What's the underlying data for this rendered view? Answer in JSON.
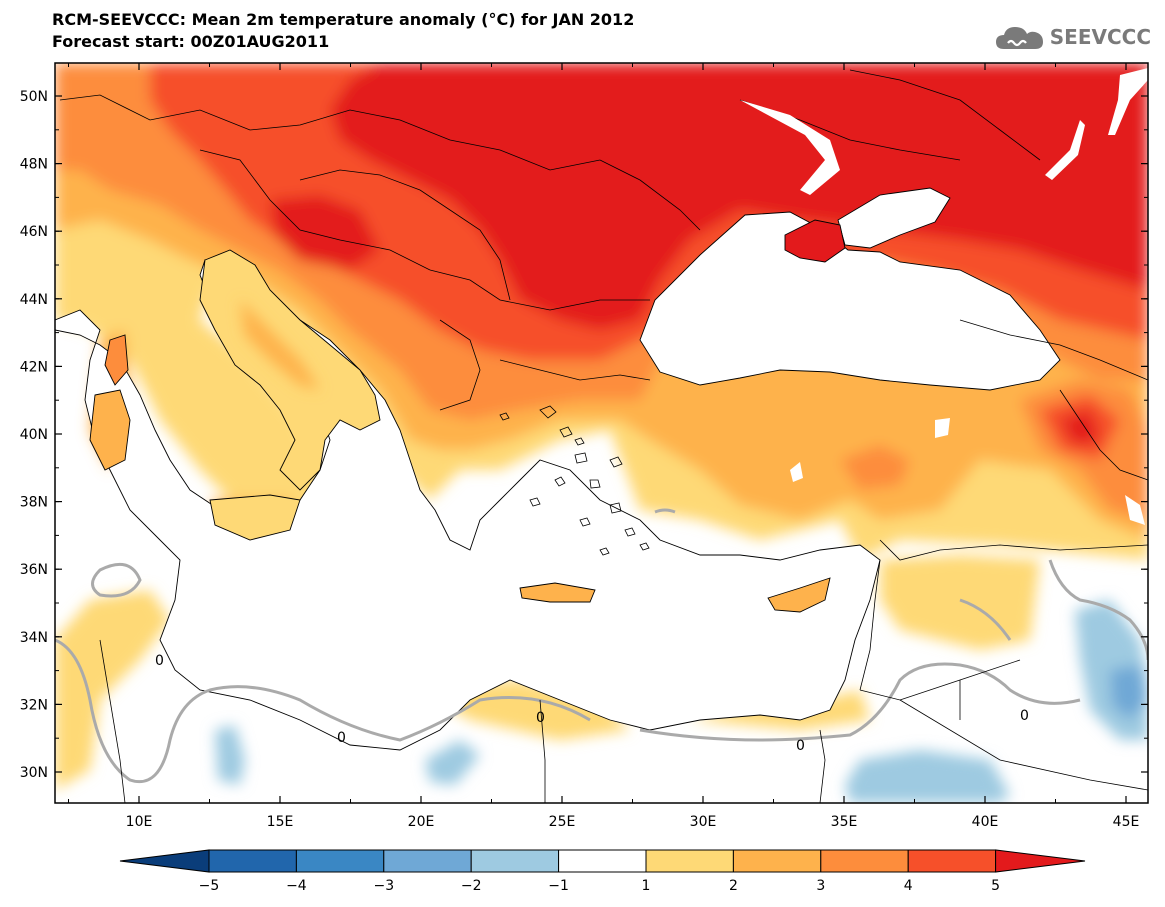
{
  "header": {
    "title_line1": "RCM-SEEVCCC: Mean 2m temperature anomaly (°C) for JAN 2012",
    "title_line2": "Forecast start: 00Z01AUG2011"
  },
  "logo": {
    "text": "SEEVCCC",
    "icon": "cloud-logo-icon"
  },
  "map": {
    "lat_labels": [
      "50N",
      "48N",
      "46N",
      "44N",
      "42N",
      "40N",
      "38N",
      "36N",
      "34N",
      "32N",
      "30N"
    ],
    "lon_labels": [
      "10E",
      "15E",
      "20E",
      "25E",
      "30E",
      "35E",
      "40E",
      "45E"
    ],
    "contour_label": "0"
  },
  "colorbar": {
    "tick_labels": [
      "−5",
      "−4",
      "−3",
      "−2",
      "−1",
      "1",
      "2",
      "3",
      "4",
      "5"
    ],
    "colors": {
      "lt_-5": "#0a3d7a",
      "-5_-4": "#2166ac",
      "-4_-3": "#3a87c4",
      "-3_-2": "#6fa8d6",
      "-2_-1": "#9ecae1",
      "-1_1": "#ffffff",
      "1_2": "#fed976",
      "2_3": "#feb24c",
      "3_4": "#fd8d3c",
      "4_5": "#f6502a",
      "gt_5": "#e31a1c"
    }
  }
}
